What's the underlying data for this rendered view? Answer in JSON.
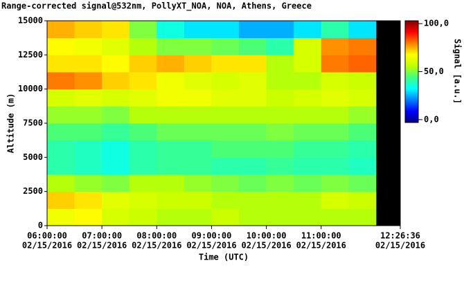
{
  "chart_data": {
    "type": "heatmap",
    "title": "Range-corrected signal@532nm, PollyXT_NOA, NOA, Athens, Greece",
    "xlabel": "Time (UTC)",
    "ylabel": "Altitude (m)",
    "colorbar_label": "Signal [a.u.]",
    "x_edges": [
      6,
      6.5,
      7,
      7.5,
      8,
      8.5,
      9,
      9.5,
      10,
      10.5,
      11,
      11.5,
      12
    ],
    "y_edges": [
      0,
      1250,
      2500,
      3750,
      5000,
      6250,
      7500,
      8750,
      10000,
      11250,
      12500,
      13750,
      15000
    ],
    "z": [
      [
        65,
        68,
        60,
        58,
        55,
        55,
        58,
        55,
        55,
        55,
        55,
        55
      ],
      [
        72,
        70,
        62,
        60,
        58,
        58,
        55,
        55,
        55,
        55,
        60,
        58
      ],
      [
        55,
        52,
        50,
        55,
        55,
        52,
        50,
        48,
        50,
        48,
        50,
        48
      ],
      [
        40,
        38,
        35,
        40,
        42,
        42,
        40,
        40,
        42,
        40,
        40,
        38
      ],
      [
        40,
        38,
        35,
        40,
        42,
        42,
        45,
        45,
        45,
        42,
        42,
        40
      ],
      [
        45,
        45,
        42,
        45,
        48,
        48,
        48,
        48,
        50,
        48,
        48,
        45
      ],
      [
        52,
        52,
        50,
        55,
        55,
        55,
        55,
        55,
        55,
        55,
        55,
        52
      ],
      [
        60,
        62,
        60,
        62,
        65,
        65,
        62,
        62,
        58,
        60,
        62,
        60
      ],
      [
        80,
        78,
        72,
        70,
        65,
        62,
        60,
        62,
        55,
        55,
        60,
        58
      ],
      [
        70,
        70,
        68,
        72,
        75,
        72,
        70,
        70,
        55,
        60,
        80,
        82
      ],
      [
        68,
        65,
        62,
        55,
        50,
        50,
        48,
        45,
        40,
        60,
        78,
        80
      ],
      [
        75,
        72,
        70,
        50,
        35,
        30,
        30,
        25,
        25,
        30,
        40,
        30
      ]
    ],
    "xlim": [
      6,
      12.4433
    ],
    "ylim": [
      0,
      15000
    ],
    "xticks": [
      {
        "value": 6,
        "label": "06:00:00"
      },
      {
        "value": 7,
        "label": "07:00:00"
      },
      {
        "value": 8,
        "label": "08:00:00"
      },
      {
        "value": 9,
        "label": "09:00:00"
      },
      {
        "value": 10,
        "label": "10:00:00"
      },
      {
        "value": 11,
        "label": "11:00:00"
      },
      {
        "value": 12.4433,
        "label": "12:26:36"
      }
    ],
    "xtick_dates": [
      "02/15/2016",
      "02/15/2016",
      "02/15/2016",
      "02/15/2016",
      "02/15/2016",
      "02/15/2016",
      "02/15/2016"
    ],
    "yticks": [
      0,
      2500,
      5000,
      7500,
      10000,
      12500,
      15000
    ],
    "clim": [
      -3,
      103
    ],
    "cticks": [
      {
        "value": 0,
        "label": "0,0"
      },
      {
        "value": 50,
        "label": "50,0"
      },
      {
        "value": 100,
        "label": "100,0"
      }
    ],
    "colormap": [
      "#00007f",
      "#0000ff",
      "#0080ff",
      "#00ffff",
      "#40ff80",
      "#c0ff00",
      "#ffff00",
      "#ff8000",
      "#ff0000",
      "#7f0000"
    ],
    "nodata_color": "#000000"
  }
}
